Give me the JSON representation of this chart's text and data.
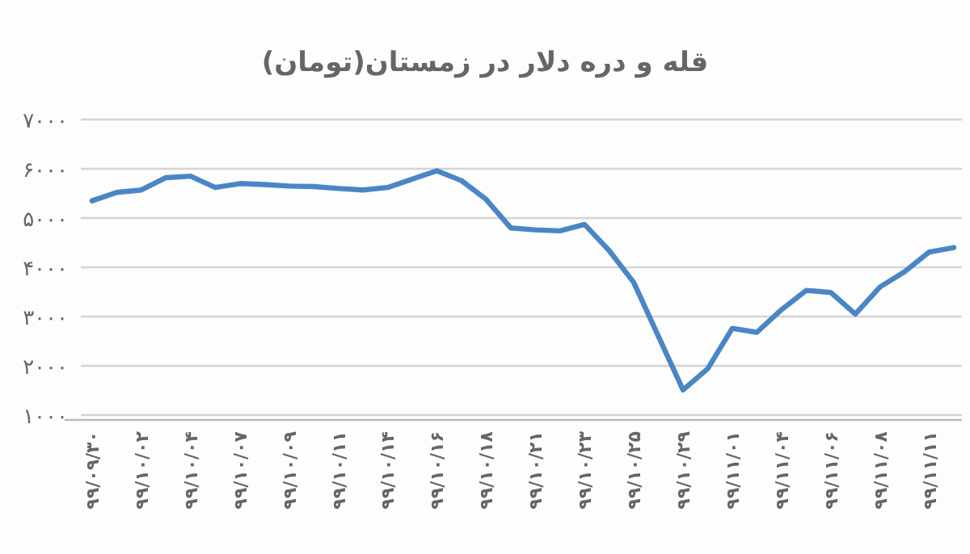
{
  "chart_data": {
    "type": "line",
    "title": "قله و دره دلار در زمستان(تومان)",
    "categories": [
      "۹۹/۰۹/۳۰",
      null,
      "۹۹/۱۰/۰۲",
      null,
      "۹۹/۱۰/۰۴",
      null,
      "۹۹/۱۰/۰۷",
      null,
      "۹۹/۱۰/۰۹",
      null,
      "۹۹/۱۰/۱۱",
      null,
      "۹۹/۱۰/۱۴",
      null,
      "۹۹/۱۰/۱۶",
      null,
      "۹۹/۱۰/۱۸",
      null,
      "۹۹/۱۰/۲۱",
      null,
      "۹۹/۱۰/۲۳",
      null,
      "۹۹/۱۰/۲۵",
      null,
      "۹۹/۱۰/۲۹",
      null,
      "۹۹/۱۱/۰۱",
      null,
      "۹۹/۱۱/۰۴",
      null,
      "۹۹/۱۱/۰۶",
      null,
      "۹۹/۱۱/۰۸",
      null,
      "۹۹/۱۱/۱۱",
      null
    ],
    "series": [
      {
        "color": "#4a86c5",
        "values": [
          5350,
          5520,
          5570,
          5820,
          5850,
          5620,
          5700,
          5680,
          5650,
          5640,
          5600,
          5570,
          5620,
          5790,
          5960,
          5760,
          5380,
          4800,
          4760,
          4740,
          4870,
          4340,
          3690,
          2600,
          1510,
          1940,
          2760,
          2680,
          3140,
          3530,
          3490,
          3050,
          3600,
          3910,
          4310,
          4400
        ]
      }
    ],
    "ylim": [
      1000,
      7000
    ],
    "yticks": [
      {
        "value": 1000,
        "label": "۱۰۰۰"
      },
      {
        "value": 2000,
        "label": "۲۰۰۰"
      },
      {
        "value": 3000,
        "label": "۳۰۰۰"
      },
      {
        "value": 4000,
        "label": "۴۰۰۰"
      },
      {
        "value": 5000,
        "label": "۵۰۰۰"
      },
      {
        "value": 6000,
        "label": "۶۰۰۰"
      },
      {
        "value": 7000,
        "label": "۷۰۰۰"
      }
    ],
    "grid": "y"
  }
}
